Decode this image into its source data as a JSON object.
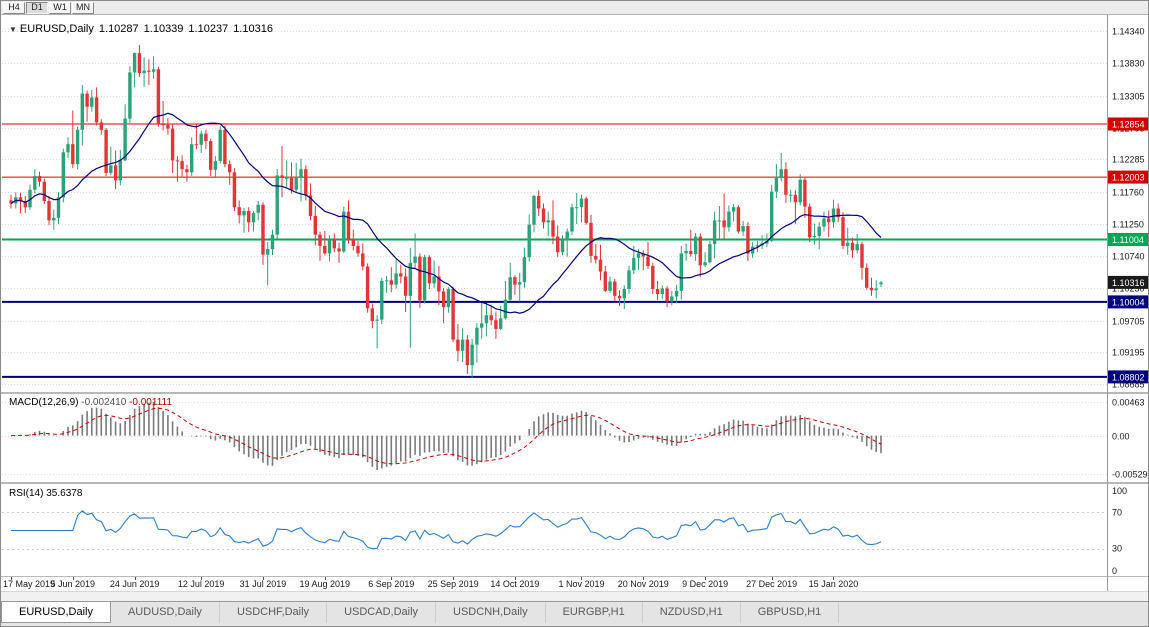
{
  "toolbar": {
    "timeframes": [
      {
        "label": "H4",
        "active": false
      },
      {
        "label": "D1",
        "active": true
      },
      {
        "label": "W1",
        "active": false
      },
      {
        "label": "MN",
        "active": false
      }
    ]
  },
  "icons": {
    "symbol_dropdown": "▼"
  },
  "chart": {
    "title_symbol": "EURUSD,Daily",
    "ohlc": {
      "open": "1.10287",
      "high": "1.10339",
      "low": "1.10237",
      "close": "1.10316"
    },
    "y_axis_labels": [
      "1.14340",
      "1.13830",
      "1.13305",
      "1.12795",
      "1.12285",
      "1.11760",
      "1.11250",
      "1.10740",
      "1.10230",
      "1.09705",
      "1.09195",
      "1.08685"
    ],
    "hlines": [
      {
        "price": 1.12854,
        "label": "1.12854",
        "color": "#d40000",
        "width": 1
      },
      {
        "price": 1.12003,
        "label": "1.12003",
        "color": "#d40000",
        "width": 1
      },
      {
        "price": 1.11004,
        "label": "1.11004",
        "color": "#00a651",
        "width": 2
      },
      {
        "price": 1.10004,
        "label": "1.10004",
        "color": "#000080",
        "width": 2
      },
      {
        "price": 1.08802,
        "label": "1.08802",
        "color": "#000080",
        "width": 2
      }
    ],
    "current_price": {
      "value": 1.10316,
      "label": "1.10316",
      "badge_color": "#1a1a1a"
    },
    "colors": {
      "bull": "#2ba378",
      "bear": "#e23535",
      "ma": "#000080",
      "macd_hist": "#7a7a7a",
      "macd_signal": "#cc0000",
      "rsi": "#2a7fce"
    }
  },
  "indicator_labels": {
    "macd_title": "MACD(12,26,9)",
    "macd_main": "-0.002410",
    "macd_signal": "-0.001111",
    "rsi_title": "RSI(14)",
    "rsi_value": "35.6378"
  },
  "chart_data": {
    "type": "candlestick",
    "symbol": "EURUSD",
    "timeframe": "Daily",
    "price_axis_range": {
      "min": 1.0856,
      "max": 1.146
    },
    "x_tick_labels": [
      "17 May 2019",
      "5 Jun 2019",
      "24 Jun 2019",
      "12 Jul 2019",
      "31 Jul 2019",
      "19 Aug 2019",
      "6 Sep 2019",
      "25 Sep 2019",
      "14 Oct 2019",
      "1 Nov 2019",
      "20 Nov 2019",
      "9 Dec 2019",
      "27 Dec 2019",
      "15 Jan 2020"
    ],
    "x_tick_indices": [
      0,
      13,
      26,
      40,
      53,
      66,
      80,
      93,
      106,
      120,
      133,
      146,
      160,
      173
    ],
    "overlays": [
      {
        "name": "moving-average",
        "type": "sma",
        "period": 20
      }
    ],
    "indicators": [
      {
        "name": "MACD",
        "params": "12,26,9",
        "values": [
          -0.00241,
          -0.001111
        ],
        "axis_labels": [
          "0.00463",
          "0.00",
          "-0.00529"
        ]
      },
      {
        "name": "RSI",
        "params": "14",
        "value": 35.6378,
        "axis_labels": [
          "100",
          "70",
          "30",
          "0"
        ],
        "levels": [
          70,
          30
        ]
      }
    ],
    "candles": [
      [
        1.1163,
        1.1172,
        1.115,
        1.1158
      ],
      [
        1.1158,
        1.1176,
        1.115,
        1.1168
      ],
      [
        1.1168,
        1.1175,
        1.1142,
        1.1162
      ],
      [
        1.1162,
        1.117,
        1.1143,
        1.1152
      ],
      [
        1.1152,
        1.1188,
        1.1148,
        1.118
      ],
      [
        1.118,
        1.1213,
        1.1174,
        1.1202
      ],
      [
        1.1202,
        1.1209,
        1.1185,
        1.1193
      ],
      [
        1.1193,
        1.1198,
        1.1157,
        1.1162
      ],
      [
        1.1162,
        1.117,
        1.1123,
        1.1131
      ],
      [
        1.1131,
        1.1148,
        1.1116,
        1.1135
      ],
      [
        1.1135,
        1.1176,
        1.1125,
        1.1168
      ],
      [
        1.1168,
        1.1246,
        1.116,
        1.124
      ],
      [
        1.124,
        1.1264,
        1.1231,
        1.1253
      ],
      [
        1.1253,
        1.1307,
        1.1215,
        1.1221
      ],
      [
        1.1221,
        1.1281,
        1.1213,
        1.1276
      ],
      [
        1.1276,
        1.1348,
        1.1251,
        1.1334
      ],
      [
        1.1334,
        1.1339,
        1.1289,
        1.1313
      ],
      [
        1.1313,
        1.134,
        1.1305,
        1.1328
      ],
      [
        1.1328,
        1.1344,
        1.1283,
        1.1288
      ],
      [
        1.1288,
        1.1293,
        1.1268,
        1.1276
      ],
      [
        1.1276,
        1.1279,
        1.1202,
        1.1207
      ],
      [
        1.1207,
        1.1249,
        1.1203,
        1.1219
      ],
      [
        1.1219,
        1.1243,
        1.1181,
        1.1195
      ],
      [
        1.1195,
        1.1244,
        1.1187,
        1.1227
      ],
      [
        1.1227,
        1.1317,
        1.1226,
        1.1294
      ],
      [
        1.1294,
        1.1378,
        1.1287,
        1.1368
      ],
      [
        1.1368,
        1.14,
        1.1344,
        1.1399
      ],
      [
        1.1399,
        1.1412,
        1.1361,
        1.1367
      ],
      [
        1.1367,
        1.1392,
        1.1345,
        1.1371
      ],
      [
        1.1371,
        1.1389,
        1.1348,
        1.1369
      ],
      [
        1.1369,
        1.1394,
        1.1358,
        1.1373
      ],
      [
        1.1373,
        1.1377,
        1.1281,
        1.1285
      ],
      [
        1.1285,
        1.1322,
        1.1275,
        1.1284
      ],
      [
        1.1284,
        1.1295,
        1.1268,
        1.1278
      ],
      [
        1.1278,
        1.1285,
        1.1207,
        1.1227
      ],
      [
        1.1227,
        1.1234,
        1.1193,
        1.1226
      ],
      [
        1.1226,
        1.1235,
        1.12,
        1.1213
      ],
      [
        1.1213,
        1.122,
        1.1193,
        1.1208
      ],
      [
        1.1208,
        1.1264,
        1.1202,
        1.1253
      ],
      [
        1.1253,
        1.1286,
        1.1245,
        1.1252
      ],
      [
        1.1252,
        1.1275,
        1.1239,
        1.127
      ],
      [
        1.127,
        1.1276,
        1.1245,
        1.1258
      ],
      [
        1.1258,
        1.1262,
        1.1202,
        1.1212
      ],
      [
        1.1212,
        1.1234,
        1.1199,
        1.1226
      ],
      [
        1.1226,
        1.1282,
        1.1222,
        1.1276
      ],
      [
        1.1276,
        1.1283,
        1.1216,
        1.1221
      ],
      [
        1.1221,
        1.1227,
        1.1188,
        1.1208
      ],
      [
        1.1208,
        1.1215,
        1.1146,
        1.1152
      ],
      [
        1.1152,
        1.1163,
        1.1126,
        1.1139
      ],
      [
        1.1139,
        1.1151,
        1.1111,
        1.1146
      ],
      [
        1.1146,
        1.1152,
        1.1112,
        1.1128
      ],
      [
        1.1128,
        1.1146,
        1.1113,
        1.1143
      ],
      [
        1.1143,
        1.1162,
        1.1131,
        1.1156
      ],
      [
        1.1156,
        1.116,
        1.106,
        1.1076
      ],
      [
        1.1076,
        1.1096,
        1.1027,
        1.1085
      ],
      [
        1.1085,
        1.1116,
        1.1075,
        1.1108
      ],
      [
        1.1108,
        1.1213,
        1.1101,
        1.1203
      ],
      [
        1.1203,
        1.125,
        1.1168,
        1.1199
      ],
      [
        1.1199,
        1.1227,
        1.1184,
        1.1199
      ],
      [
        1.1199,
        1.1224,
        1.1174,
        1.118
      ],
      [
        1.118,
        1.1223,
        1.1177,
        1.1199
      ],
      [
        1.1199,
        1.123,
        1.1161,
        1.1213
      ],
      [
        1.1213,
        1.1219,
        1.1163,
        1.1171
      ],
      [
        1.1171,
        1.119,
        1.1131,
        1.1138
      ],
      [
        1.1138,
        1.1154,
        1.1091,
        1.1108
      ],
      [
        1.1108,
        1.1113,
        1.1066,
        1.109
      ],
      [
        1.109,
        1.1114,
        1.1075,
        1.1078
      ],
      [
        1.1078,
        1.1107,
        1.1065,
        1.11
      ],
      [
        1.11,
        1.111,
        1.108,
        1.1086
      ],
      [
        1.1086,
        1.1095,
        1.1063,
        1.1081
      ],
      [
        1.1081,
        1.1153,
        1.1079,
        1.1145
      ],
      [
        1.1145,
        1.1163,
        1.1094,
        1.1101
      ],
      [
        1.1101,
        1.1116,
        1.1083,
        1.109
      ],
      [
        1.109,
        1.1098,
        1.1073,
        1.1078
      ],
      [
        1.1078,
        1.1094,
        1.1051,
        1.1057
      ],
      [
        1.1057,
        1.1062,
        1.0983,
        1.099
      ],
      [
        1.099,
        1.0998,
        1.0958,
        1.097
      ],
      [
        1.097,
        1.0979,
        1.0926,
        1.0972
      ],
      [
        1.0972,
        1.1039,
        1.0965,
        1.1034
      ],
      [
        1.1034,
        1.1042,
        1.1015,
        1.1035
      ],
      [
        1.1035,
        1.1056,
        1.1016,
        1.1028
      ],
      [
        1.1028,
        1.1068,
        1.1022,
        1.1046
      ],
      [
        1.1046,
        1.106,
        1.103,
        1.1041
      ],
      [
        1.1041,
        1.1054,
        1.0984,
        1.101
      ],
      [
        1.101,
        1.1087,
        1.0927,
        1.1063
      ],
      [
        1.1063,
        1.111,
        1.1053,
        1.1073
      ],
      [
        1.1073,
        1.1078,
        1.0991,
        1.1003
      ],
      [
        1.1003,
        1.1076,
        1.0998,
        1.1072
      ],
      [
        1.1072,
        1.1075,
        1.1021,
        1.103
      ],
      [
        1.103,
        1.1067,
        1.1023,
        1.1041
      ],
      [
        1.1041,
        1.1058,
        1.0995,
        1.1017
      ],
      [
        1.1017,
        1.1023,
        1.0966,
        1.0992
      ],
      [
        1.0992,
        1.1024,
        1.0983,
        1.1021
      ],
      [
        1.1021,
        1.1025,
        1.0936,
        1.094
      ],
      [
        1.094,
        1.0965,
        1.0905,
        1.0922
      ],
      [
        1.0922,
        1.0958,
        1.0904,
        1.094
      ],
      [
        1.094,
        1.0947,
        1.0885,
        1.0899
      ],
      [
        1.0899,
        1.0941,
        1.0879,
        1.0932
      ],
      [
        1.0932,
        1.0966,
        1.0903,
        1.0959
      ],
      [
        1.0959,
        1.0999,
        1.0941,
        1.0966
      ],
      [
        1.0966,
        1.0999,
        1.0945,
        1.0979
      ],
      [
        1.0979,
        1.0996,
        1.0963,
        1.0971
      ],
      [
        1.0971,
        1.0985,
        1.0941,
        1.0957
      ],
      [
        1.0957,
        1.0994,
        1.0955,
        1.0974
      ],
      [
        1.0974,
        1.1034,
        1.0972,
        1.1004
      ],
      [
        1.1004,
        1.1063,
        1.1002,
        1.104
      ],
      [
        1.104,
        1.1043,
        1.1012,
        1.1028
      ],
      [
        1.1028,
        1.1047,
        1.1001,
        1.1032
      ],
      [
        1.1032,
        1.1087,
        1.1023,
        1.1072
      ],
      [
        1.1072,
        1.114,
        1.1065,
        1.1124
      ],
      [
        1.1124,
        1.1172,
        1.1112,
        1.117
      ],
      [
        1.117,
        1.1179,
        1.1138,
        1.115
      ],
      [
        1.115,
        1.1158,
        1.1118,
        1.1128
      ],
      [
        1.1128,
        1.1145,
        1.1106,
        1.1131
      ],
      [
        1.1131,
        1.1163,
        1.1093,
        1.1105
      ],
      [
        1.1105,
        1.1123,
        1.1072,
        1.108
      ],
      [
        1.108,
        1.1107,
        1.1075,
        1.1099
      ],
      [
        1.1099,
        1.1118,
        1.1073,
        1.1113
      ],
      [
        1.1113,
        1.1158,
        1.1107,
        1.1152
      ],
      [
        1.1152,
        1.1175,
        1.1125,
        1.1152
      ],
      [
        1.1152,
        1.1172,
        1.1128,
        1.1166
      ],
      [
        1.1166,
        1.1169,
        1.1124,
        1.1127
      ],
      [
        1.1127,
        1.114,
        1.1063,
        1.1074
      ],
      [
        1.1074,
        1.1093,
        1.1062,
        1.1068
      ],
      [
        1.1068,
        1.1092,
        1.1035,
        1.1049
      ],
      [
        1.1049,
        1.1058,
        1.1016,
        1.1018
      ],
      [
        1.1018,
        1.1041,
        1.1015,
        1.1033
      ],
      [
        1.1033,
        1.1037,
        1.1002,
        1.101
      ],
      [
        1.101,
        1.1019,
        1.0994,
        1.1006
      ],
      [
        1.1006,
        1.1027,
        1.0989,
        1.1021
      ],
      [
        1.1021,
        1.1058,
        1.1014,
        1.1051
      ],
      [
        1.1051,
        1.109,
        1.1045,
        1.1071
      ],
      [
        1.1071,
        1.1085,
        1.1052,
        1.1078
      ],
      [
        1.1078,
        1.1083,
        1.1051,
        1.1073
      ],
      [
        1.1073,
        1.1097,
        1.1053,
        1.1058
      ],
      [
        1.1058,
        1.1063,
        1.1013,
        1.1021
      ],
      [
        1.1021,
        1.1034,
        1.1003,
        1.1013
      ],
      [
        1.1013,
        1.1027,
        1.1005,
        1.1022
      ],
      [
        1.1022,
        1.1026,
        1.0992,
        1.1001
      ],
      [
        1.1001,
        1.1018,
        1.0995,
        1.1009
      ],
      [
        1.1009,
        1.1028,
        1.0998,
        1.1018
      ],
      [
        1.1018,
        1.109,
        1.1004,
        1.1078
      ],
      [
        1.1078,
        1.1094,
        1.1066,
        1.1082
      ],
      [
        1.1082,
        1.1116,
        1.1073,
        1.1077
      ],
      [
        1.1077,
        1.1111,
        1.1066,
        1.1105
      ],
      [
        1.1105,
        1.111,
        1.104,
        1.1059
      ],
      [
        1.1059,
        1.108,
        1.1056,
        1.1064
      ],
      [
        1.1064,
        1.1098,
        1.1062,
        1.1093
      ],
      [
        1.1093,
        1.1145,
        1.107,
        1.1131
      ],
      [
        1.1131,
        1.1154,
        1.1101,
        1.1131
      ],
      [
        1.1131,
        1.1174,
        1.1102,
        1.112
      ],
      [
        1.112,
        1.1155,
        1.1113,
        1.1145
      ],
      [
        1.1145,
        1.1157,
        1.1129,
        1.1152
      ],
      [
        1.1152,
        1.1155,
        1.111,
        1.1113
      ],
      [
        1.1113,
        1.113,
        1.1106,
        1.1122
      ],
      [
        1.1122,
        1.1128,
        1.1066,
        1.1078
      ],
      [
        1.1078,
        1.1096,
        1.1071,
        1.1089
      ],
      [
        1.1089,
        1.1098,
        1.108,
        1.1091
      ],
      [
        1.1091,
        1.1107,
        1.1085,
        1.1094
      ],
      [
        1.1094,
        1.111,
        1.1088,
        1.1098
      ],
      [
        1.1098,
        1.1188,
        1.1096,
        1.1177
      ],
      [
        1.1177,
        1.1221,
        1.1167,
        1.1199
      ],
      [
        1.1199,
        1.1239,
        1.1193,
        1.1213
      ],
      [
        1.1213,
        1.1224,
        1.1159,
        1.1172
      ],
      [
        1.1172,
        1.118,
        1.116,
        1.1172
      ],
      [
        1.1172,
        1.1179,
        1.1125,
        1.116
      ],
      [
        1.116,
        1.1205,
        1.1155,
        1.1196
      ],
      [
        1.1196,
        1.1199,
        1.1135,
        1.1153
      ],
      [
        1.1153,
        1.1158,
        1.1096,
        1.1104
      ],
      [
        1.1104,
        1.1126,
        1.1092,
        1.1106
      ],
      [
        1.1106,
        1.1128,
        1.1085,
        1.1121
      ],
      [
        1.1121,
        1.1145,
        1.1113,
        1.1134
      ],
      [
        1.1134,
        1.1147,
        1.1104,
        1.1128
      ],
      [
        1.1128,
        1.1164,
        1.1119,
        1.115
      ],
      [
        1.115,
        1.1158,
        1.1128,
        1.1136
      ],
      [
        1.1136,
        1.1144,
        1.1085,
        1.109
      ],
      [
        1.109,
        1.1119,
        1.1076,
        1.1095
      ],
      [
        1.1095,
        1.1103,
        1.1071,
        1.1083
      ],
      [
        1.1083,
        1.1109,
        1.1078,
        1.1093
      ],
      [
        1.1093,
        1.1097,
        1.1036,
        1.1055
      ],
      [
        1.1055,
        1.1062,
        1.102,
        1.1023
      ],
      [
        1.1023,
        1.1039,
        1.101,
        1.1019
      ],
      [
        1.1019,
        1.1035,
        1.1006,
        1.1022
      ],
      [
        1.10287,
        1.10339,
        1.10237,
        1.10316
      ]
    ]
  },
  "tabs": [
    {
      "label": "EURUSD,Daily",
      "active": true
    },
    {
      "label": "AUDUSD,Daily",
      "active": false
    },
    {
      "label": "USDCHF,Daily",
      "active": false
    },
    {
      "label": "USDCAD,Daily",
      "active": false
    },
    {
      "label": "USDCNH,Daily",
      "active": false
    },
    {
      "label": "EURGBP,H1",
      "active": false
    },
    {
      "label": "NZDUSD,H1",
      "active": false
    },
    {
      "label": "GBPUSD,H1",
      "active": false
    }
  ]
}
